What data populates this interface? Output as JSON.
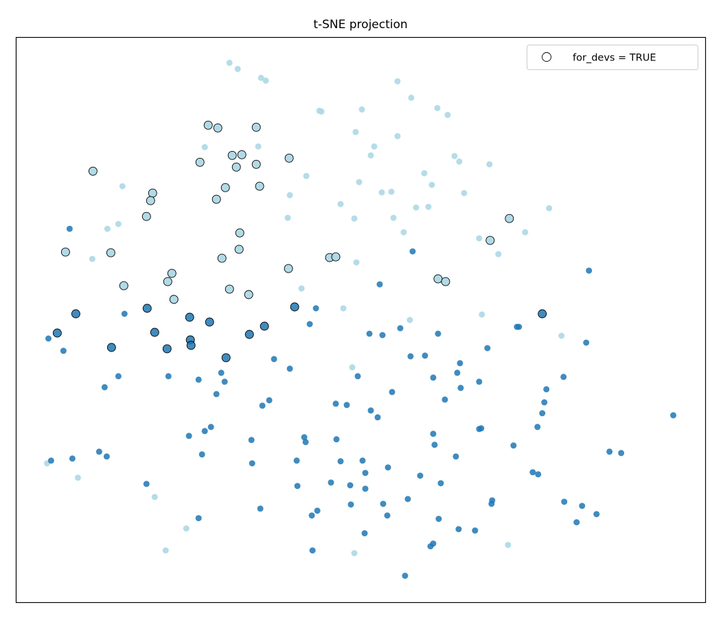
{
  "chart_data": {
    "type": "scatter",
    "title": "t-SNE projection",
    "xlabel": "",
    "ylabel": "",
    "xlim": [
      -502,
      503
    ],
    "ylim": [
      -413,
      411
    ],
    "axis_ticks": false,
    "grid": false,
    "legend": {
      "placement": "top-right",
      "entries": [
        {
          "label": "for_devs = TRUE",
          "marker": "hollow circle, black edge"
        }
      ]
    },
    "colors": {
      "light": "#add8e6",
      "dark": "#1f77b4",
      "highlight_edge": "#000000"
    },
    "series": [
      {
        "color": "#add8e6",
        "highlighted": false,
        "points": [
          [
            -191,
            374
          ],
          [
            -179,
            365
          ],
          [
            -145,
            352
          ],
          [
            -138,
            348
          ],
          [
            54,
            347
          ],
          [
            74,
            323
          ],
          [
            -60,
            304
          ],
          [
            -57,
            303
          ],
          [
            2,
            306
          ],
          [
            112,
            308
          ],
          [
            127,
            298
          ],
          [
            -7,
            273
          ],
          [
            54,
            267
          ],
          [
            -227,
            251
          ],
          [
            -149,
            252
          ],
          [
            20,
            252
          ],
          [
            15,
            239
          ],
          [
            137,
            238
          ],
          [
            144,
            230
          ],
          [
            188,
            226
          ],
          [
            -79,
            209
          ],
          [
            93,
            213
          ],
          [
            -347,
            194
          ],
          [
            -2,
            200
          ],
          [
            104,
            196
          ],
          [
            31,
            185
          ],
          [
            45,
            186
          ],
          [
            -103,
            181
          ],
          [
            151,
            184
          ],
          [
            -29,
            168
          ],
          [
            81,
            163
          ],
          [
            99,
            164
          ],
          [
            275,
            162
          ],
          [
            -353,
            139
          ],
          [
            -369,
            132
          ],
          [
            -106,
            148
          ],
          [
            -9,
            147
          ],
          [
            48,
            148
          ],
          [
            63,
            127
          ],
          [
            240,
            127
          ],
          [
            173,
            118
          ],
          [
            -391,
            88
          ],
          [
            201,
            95
          ],
          [
            -6,
            83
          ],
          [
            -86,
            45
          ],
          [
            -25,
            16
          ],
          [
            177,
            7
          ],
          [
            72,
            -1
          ],
          [
            293,
            -24
          ],
          [
            -12,
            -70
          ],
          [
            -457,
            -210
          ],
          [
            -412,
            -231
          ],
          [
            -300,
            -259
          ],
          [
            -254,
            -305
          ],
          [
            -284,
            -337
          ],
          [
            -9,
            -341
          ],
          [
            215,
            -329
          ]
        ]
      },
      {
        "color": "#add8e6",
        "highlighted": true,
        "points": [
          [
            -222,
            283
          ],
          [
            -208,
            279
          ],
          [
            -152,
            280
          ],
          [
            -390,
            216
          ],
          [
            -234,
            229
          ],
          [
            -187,
            239
          ],
          [
            -173,
            240
          ],
          [
            -181,
            222
          ],
          [
            -152,
            226
          ],
          [
            -104,
            235
          ],
          [
            -197,
            192
          ],
          [
            -147,
            194
          ],
          [
            -210,
            175
          ],
          [
            -303,
            184
          ],
          [
            -306,
            173
          ],
          [
            -312,
            150
          ],
          [
            -176,
            126
          ],
          [
            217,
            147
          ],
          [
            189,
            115
          ],
          [
            -430,
            98
          ],
          [
            -364,
            97
          ],
          [
            -177,
            102
          ],
          [
            -202,
            89
          ],
          [
            -105,
            74
          ],
          [
            -45,
            90
          ],
          [
            -36,
            91
          ],
          [
            -345,
            49
          ],
          [
            -275,
            67
          ],
          [
            -281,
            55
          ],
          [
            -191,
            44
          ],
          [
            -163,
            36
          ],
          [
            -272,
            29
          ],
          [
            113,
            59
          ],
          [
            124,
            55
          ]
        ]
      },
      {
        "color": "#1f77b4",
        "highlighted": true,
        "points": [
          [
            -415,
            8
          ],
          [
            -311,
            16
          ],
          [
            -442,
            -20
          ],
          [
            -300,
            -19
          ],
          [
            -249,
            3
          ],
          [
            -220,
            -4
          ],
          [
            -363,
            -41
          ],
          [
            -282,
            -43
          ],
          [
            -248,
            -30
          ],
          [
            -247,
            -38
          ],
          [
            -162,
            -22
          ],
          [
            -140,
            -10
          ],
          [
            -196,
            -56
          ],
          [
            -96,
            18
          ],
          [
            265,
            8
          ]
        ]
      },
      {
        "color": "#1f77b4",
        "highlighted": false,
        "points": [
          [
            -424,
            132
          ],
          [
            76,
            99
          ],
          [
            28,
            51
          ],
          [
            333,
            71
          ],
          [
            -344,
            8
          ],
          [
            -65,
            16
          ],
          [
            -74,
            -7
          ],
          [
            -455,
            -28
          ],
          [
            -433,
            -46
          ],
          [
            13,
            -21
          ],
          [
            32,
            -23
          ],
          [
            58,
            -13
          ],
          [
            113,
            -21
          ],
          [
            228,
            -11
          ],
          [
            231,
            -11
          ],
          [
            329,
            -34
          ],
          [
            185,
            -42
          ],
          [
            -126,
            -58
          ],
          [
            73,
            -54
          ],
          [
            94,
            -53
          ],
          [
            145,
            -64
          ],
          [
            -103,
            -72
          ],
          [
            -353,
            -83
          ],
          [
            -280,
            -83
          ],
          [
            -236,
            -88
          ],
          [
            -203,
            -78
          ],
          [
            -198,
            -91
          ],
          [
            -4,
            -83
          ],
          [
            106,
            -85
          ],
          [
            141,
            -78
          ],
          [
            173,
            -91
          ],
          [
            296,
            -84
          ],
          [
            -373,
            -99
          ],
          [
            -210,
            -109
          ],
          [
            46,
            -106
          ],
          [
            146,
            -100
          ],
          [
            271,
            -102
          ],
          [
            -133,
            -118
          ],
          [
            -143,
            -126
          ],
          [
            -36,
            -123
          ],
          [
            -20,
            -125
          ],
          [
            123,
            -117
          ],
          [
            268,
            -121
          ],
          [
            15,
            -133
          ],
          [
            265,
            -137
          ],
          [
            25,
            -143
          ],
          [
            456,
            -140
          ],
          [
            -218,
            -157
          ],
          [
            -227,
            -163
          ],
          [
            -250,
            -170
          ],
          [
            -159,
            -176
          ],
          [
            -82,
            -172
          ],
          [
            -80,
            -179
          ],
          [
            -35,
            -175
          ],
          [
            106,
            -167
          ],
          [
            173,
            -160
          ],
          [
            176,
            -159
          ],
          [
            258,
            -157
          ],
          [
            108,
            -183
          ],
          [
            223,
            -184
          ],
          [
            -381,
            -193
          ],
          [
            -370,
            -200
          ],
          [
            -231,
            -197
          ],
          [
            -451,
            -206
          ],
          [
            -420,
            -203
          ],
          [
            -158,
            -210
          ],
          [
            -93,
            -206
          ],
          [
            -29,
            -207
          ],
          [
            3,
            -206
          ],
          [
            139,
            -200
          ],
          [
            363,
            -193
          ],
          [
            380,
            -195
          ],
          [
            40,
            -216
          ],
          [
            7,
            -224
          ],
          [
            87,
            -228
          ],
          [
            251,
            -223
          ],
          [
            259,
            -226
          ],
          [
            -312,
            -240
          ],
          [
            -92,
            -243
          ],
          [
            -43,
            -238
          ],
          [
            -15,
            -242
          ],
          [
            7,
            -247
          ],
          [
            117,
            -239
          ],
          [
            192,
            -264
          ],
          [
            191,
            -269
          ],
          [
            297,
            -266
          ],
          [
            323,
            -272
          ],
          [
            -146,
            -276
          ],
          [
            -63,
            -279
          ],
          [
            -71,
            -286
          ],
          [
            -14,
            -270
          ],
          [
            33,
            -269
          ],
          [
            69,
            -262
          ],
          [
            39,
            -286
          ],
          [
            344,
            -284
          ],
          [
            -236,
            -290
          ],
          [
            114,
            -291
          ],
          [
            315,
            -296
          ],
          [
            143,
            -306
          ],
          [
            167,
            -308
          ],
          [
            6,
            -312
          ],
          [
            106,
            -327
          ],
          [
            102,
            -331
          ],
          [
            -70,
            -337
          ],
          [
            65,
            -374
          ]
        ]
      }
    ]
  }
}
